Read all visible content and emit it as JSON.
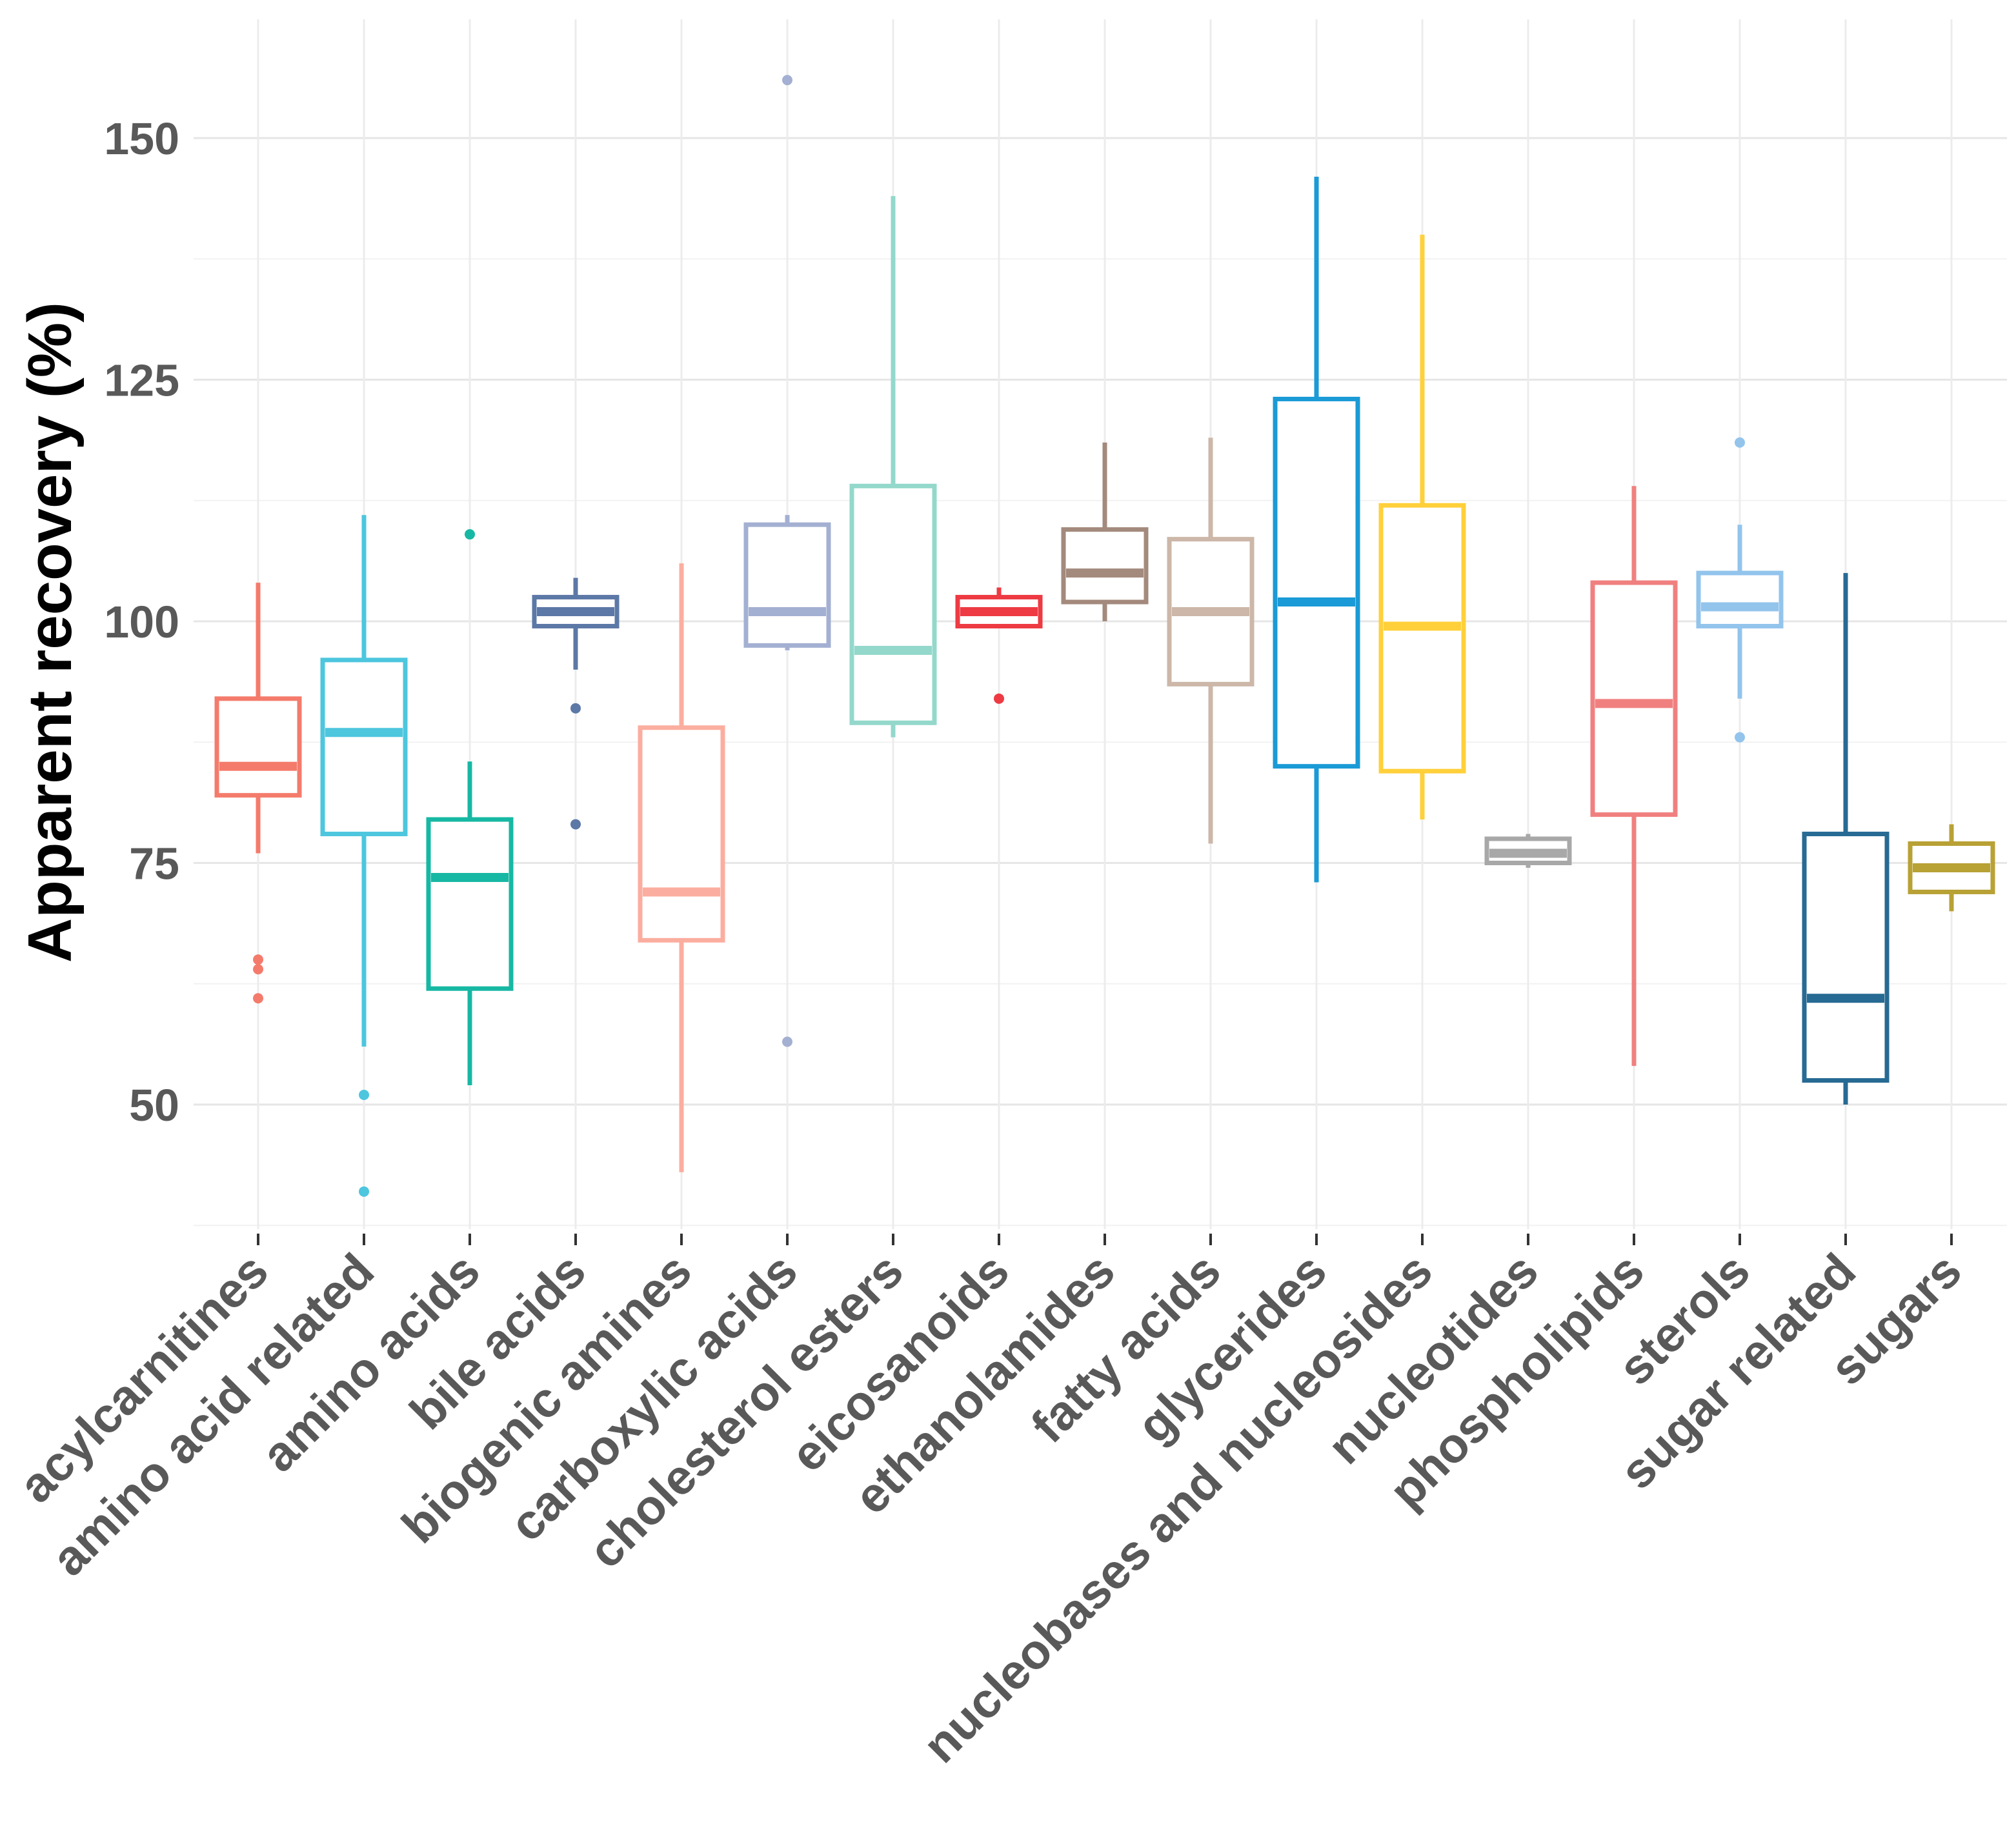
{
  "chart_data": {
    "type": "boxplot",
    "title": "",
    "xlabel": "",
    "ylabel": "Apparent recovery (%)",
    "ylim": [
      36,
      160
    ],
    "yticks": [
      50,
      75,
      100,
      125,
      150
    ],
    "ytick_labels": [
      "50",
      "75",
      "100",
      "125",
      "150"
    ],
    "grid": true,
    "legend": "none",
    "categories": [
      "acylcarnitines",
      "amino acid related",
      "amino acids",
      "bile acids",
      "biogenic amines",
      "carboxylic acids",
      "cholesterol esters",
      "eicosanoids",
      "ethanolamides",
      "fatty acids",
      "glycerides",
      "nucleobases and nucleosides",
      "nucleotides",
      "phospholipids",
      "sterols",
      "sugar related",
      "sugars"
    ],
    "series": [
      {
        "name": "acylcarnitines",
        "color": "#F47B6B",
        "whisker_low": 76,
        "q1": 82,
        "median": 85,
        "q3": 92,
        "whisker_high": 104,
        "outliers": [
          65,
          64,
          61
        ]
      },
      {
        "name": "amino acid related",
        "color": "#4DC6DE",
        "whisker_low": 56,
        "q1": 78,
        "median": 88.5,
        "q3": 96,
        "whisker_high": 111,
        "outliers": [
          51,
          41
        ]
      },
      {
        "name": "amino acids",
        "color": "#17B8A3",
        "whisker_low": 52,
        "q1": 62,
        "median": 73.5,
        "q3": 79.5,
        "whisker_high": 85.5,
        "outliers": [
          109
        ]
      },
      {
        "name": "bile acids",
        "color": "#5C78A6",
        "whisker_low": 95,
        "q1": 99.5,
        "median": 101,
        "q3": 102.5,
        "whisker_high": 104.5,
        "outliers": [
          91,
          79
        ]
      },
      {
        "name": "biogenic amines",
        "color": "#FBAE9F",
        "whisker_low": 43,
        "q1": 67,
        "median": 72,
        "q3": 89,
        "whisker_high": 106,
        "outliers": []
      },
      {
        "name": "carboxylic acids",
        "color": "#A4B0D2",
        "whisker_low": 97,
        "q1": 97.5,
        "median": 101,
        "q3": 110,
        "whisker_high": 111,
        "outliers": [
          156,
          56.5
        ]
      },
      {
        "name": "cholesterol esters",
        "color": "#93D8CB",
        "whisker_low": 88,
        "q1": 89.5,
        "median": 97,
        "q3": 114,
        "whisker_high": 144,
        "outliers": []
      },
      {
        "name": "eicosanoids",
        "color": "#EE3A43",
        "whisker_low": 99.5,
        "q1": 99.5,
        "median": 101,
        "q3": 102.5,
        "whisker_high": 103.5,
        "outliers": [
          92
        ]
      },
      {
        "name": "ethanolamides",
        "color": "#A38A7C",
        "whisker_low": 100,
        "q1": 102,
        "median": 105,
        "q3": 109.5,
        "whisker_high": 118.5,
        "outliers": []
      },
      {
        "name": "fatty acids",
        "color": "#CCB7A8",
        "whisker_low": 77,
        "q1": 93.5,
        "median": 101,
        "q3": 108.5,
        "whisker_high": 119,
        "outliers": []
      },
      {
        "name": "glycerides",
        "color": "#1A9AD6",
        "whisker_low": 73,
        "q1": 85,
        "median": 102,
        "q3": 123,
        "whisker_high": 146,
        "outliers": []
      },
      {
        "name": "nucleobases and nucleosides",
        "color": "#FFD03A",
        "whisker_low": 79.5,
        "q1": 84.5,
        "median": 99.5,
        "q3": 112,
        "whisker_high": 140,
        "outliers": []
      },
      {
        "name": "nucleotides",
        "color": "#A8A8A8",
        "whisker_low": 74.5,
        "q1": 75,
        "median": 76,
        "q3": 77.5,
        "whisker_high": 78,
        "outliers": []
      },
      {
        "name": "phospholipids",
        "color": "#F08080",
        "whisker_low": 54,
        "q1": 80,
        "median": 91.5,
        "q3": 104,
        "whisker_high": 114,
        "outliers": []
      },
      {
        "name": "sterols",
        "color": "#93C4EC",
        "whisker_low": 92,
        "q1": 99.5,
        "median": 101.5,
        "q3": 105,
        "whisker_high": 110,
        "outliers": [
          118.5,
          88
        ]
      },
      {
        "name": "sugar related",
        "color": "#276A93",
        "whisker_low": 50,
        "q1": 52.5,
        "median": 61,
        "q3": 78,
        "whisker_high": 105,
        "outliers": []
      },
      {
        "name": "sugars",
        "color": "#B8A135",
        "whisker_low": 70,
        "q1": 72,
        "median": 74.5,
        "q3": 77,
        "whisker_high": 79,
        "outliers": []
      }
    ]
  }
}
